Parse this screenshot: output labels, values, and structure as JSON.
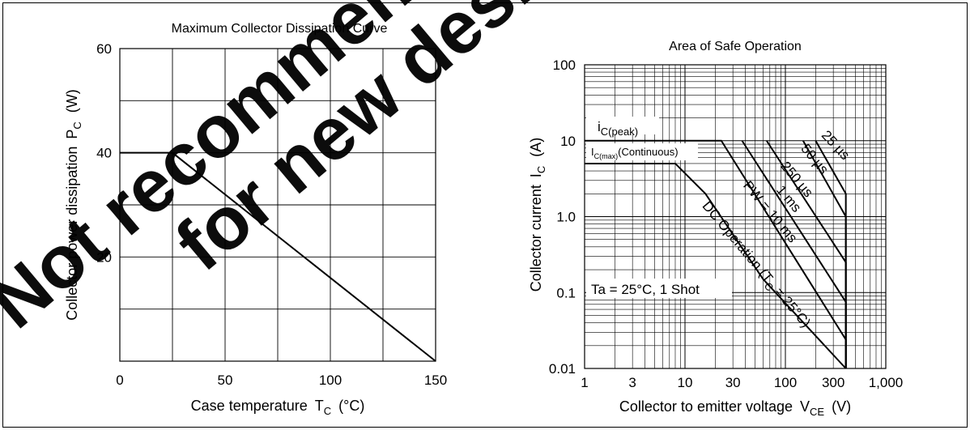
{
  "watermark": {
    "line1": "Not recommended",
    "line2": "for new design",
    "color": "#ff0000"
  },
  "chart_data": [
    {
      "type": "line",
      "title": "Maximum Collector Dissipation Curve",
      "xlabel": "Case temperature",
      "xsymbol": "T",
      "xsymbol_sub": "C",
      "xunit": "(°C)",
      "ylabel": "Collector power dissipation",
      "ysymbol": "P",
      "ysymbol_sub": "C",
      "yunit": "(W)",
      "xlim": [
        0,
        150
      ],
      "ylim": [
        0,
        60
      ],
      "xticks": [
        0,
        50,
        100,
        150
      ],
      "yticks": [
        20,
        40,
        60
      ],
      "xtick_labels": [
        "0",
        "50",
        "100",
        "150"
      ],
      "ytick_labels": [
        "20",
        "40",
        "60"
      ],
      "grid": true,
      "grid_x": [
        0,
        25,
        50,
        75,
        100,
        125,
        150
      ],
      "grid_y": [
        0,
        10,
        20,
        30,
        40,
        50,
        60
      ],
      "series": [
        {
          "x": [
            0,
            25,
            150
          ],
          "y": [
            40,
            40,
            0
          ]
        }
      ]
    },
    {
      "type": "line",
      "title": "Area of Safe Operation",
      "xlabel": "Collector to emitter voltage",
      "xsymbol": "V",
      "xsymbol_sub": "CE",
      "xunit": "(V)",
      "ylabel": "Collector current",
      "ysymbol": "I",
      "ysymbol_sub": "C",
      "yunit": "(A)",
      "xscale": "log",
      "yscale": "log",
      "xlim": [
        1,
        1000
      ],
      "ylim": [
        0.01,
        100
      ],
      "xticks": [
        1,
        3,
        10,
        30,
        100,
        300,
        1000
      ],
      "xtick_labels": [
        "1",
        "3",
        "10",
        "30",
        "100",
        "300",
        "1,000"
      ],
      "yticks": [
        0.01,
        0.1,
        1,
        10,
        100
      ],
      "ytick_labels": [
        "0.01",
        "0.1",
        "1.0",
        "10",
        "100"
      ],
      "grid": true,
      "annotations": {
        "ic_peak": {
          "main": "i",
          "sub": "C(peak)"
        },
        "ic_max": {
          "main": "I",
          "sub": "C(max)",
          "suffix": "(Continuous)"
        },
        "condition": "Ta = 25°C, 1 Shot",
        "pw_25us": "25 µs",
        "pw_50us": "50 µs",
        "pw_250us": "250 µs",
        "pw_1ms": "1 ms",
        "pw_10ms": "PW = 10 ms",
        "dc_main": "DC Operation (T",
        "dc_sub": "C",
        "dc_tail": " = 25°C)"
      },
      "series": [
        {
          "x": [
            1,
            8,
            16,
            60,
            400,
            400
          ],
          "y": [
            5,
            5,
            2,
            0.15,
            0.01,
            0.01
          ]
        },
        {
          "x": [
            1,
            23,
            400,
            400
          ],
          "y": [
            10,
            10,
            0.024,
            0.01
          ]
        },
        {
          "x": [
            37,
            400,
            400
          ],
          "y": [
            10,
            0.075,
            0.01
          ]
        },
        {
          "x": [
            65,
            400,
            400
          ],
          "y": [
            10,
            0.25,
            0.01
          ]
        },
        {
          "x": [
            150,
            400,
            400
          ],
          "y": [
            10,
            1,
            0.01
          ]
        },
        {
          "x": [
            200,
            400,
            400
          ],
          "y": [
            10,
            2,
            0.01
          ]
        }
      ]
    }
  ]
}
